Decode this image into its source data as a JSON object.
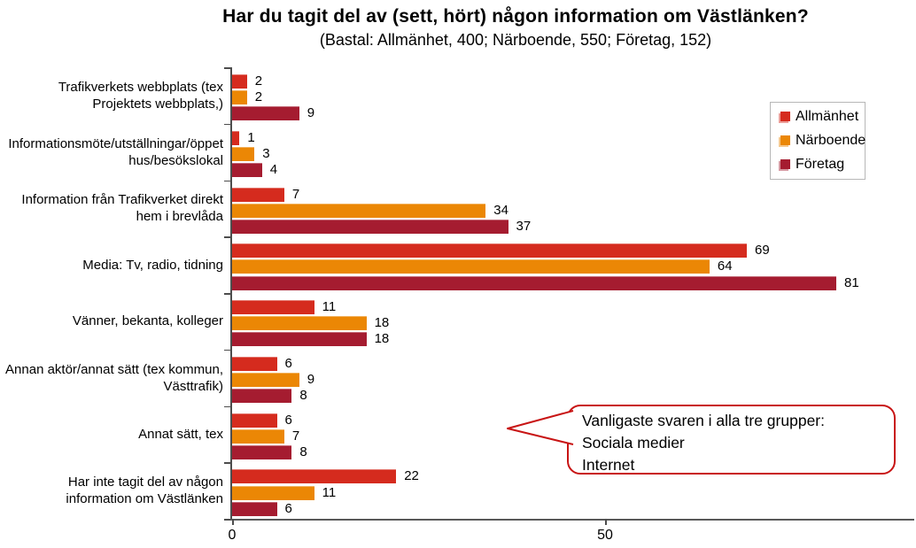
{
  "chart_data": {
    "type": "bar",
    "orientation": "horizontal",
    "title": "Har du tagit del av (sett, hört) någon information om Västlänken?",
    "subtitle": "(Bastal: Allmänhet, 400; Närboende, 550; Företag, 152)",
    "categories": [
      "Trafikverkets webbplats (tex Projektets webbplats,)",
      "Informationsmöte/utställningar/öppet hus/besökslokal",
      "Information från Trafikverket direkt hem i brevlåda",
      "Media: Tv, radio, tidning",
      "Vänner, bekanta, kolleger",
      "Annan aktör/annat sätt (tex kommun, Västtrafik)",
      "Annat sätt, tex",
      "Har inte tagit del av någon information om Västlänken"
    ],
    "series": [
      {
        "name": "Allmänhet",
        "slug": "allmanhet",
        "color": "#D52B1E",
        "values": [
          2,
          1,
          7,
          69,
          11,
          6,
          6,
          22
        ]
      },
      {
        "name": "Närboende",
        "slug": "narboende",
        "color": "#EB8705",
        "values": [
          2,
          3,
          34,
          64,
          18,
          9,
          7,
          11
        ]
      },
      {
        "name": "Företag",
        "slug": "foretag",
        "color": "#A51C30",
        "values": [
          9,
          4,
          37,
          81,
          18,
          8,
          8,
          6
        ]
      }
    ],
    "xlim": [
      0,
      91
    ],
    "xticks": [
      0,
      50
    ],
    "grid": false,
    "legend_position": "top-right"
  },
  "annotation": {
    "lines": [
      "Vanligaste svaren i alla tre grupper:",
      "Sociala medier",
      "Internet"
    ],
    "border_color": "#C81414"
  },
  "colors": {
    "axis": "#4D4D4D",
    "text": "#000000",
    "background": "#FFFFFF"
  }
}
